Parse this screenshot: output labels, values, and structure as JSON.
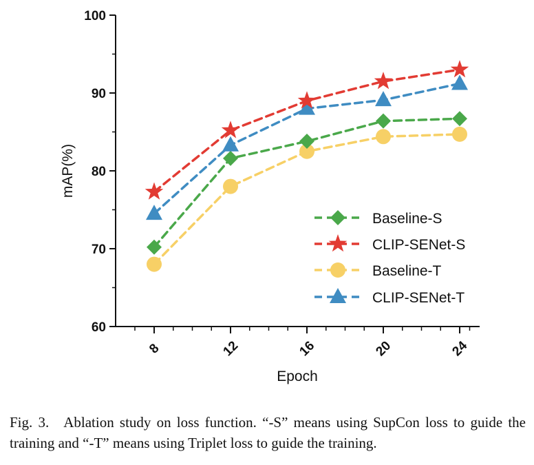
{
  "chart_data": {
    "type": "line",
    "xlabel": "Epoch",
    "ylabel": "mAP(%)",
    "categories": [
      "8",
      "12",
      "16",
      "20",
      "24"
    ],
    "ylim": [
      60,
      100
    ],
    "yticks": [
      "60",
      "70",
      "80",
      "90",
      "100"
    ],
    "legend_position": "bottom-right",
    "grid": false,
    "series": [
      {
        "name": "Baseline-S",
        "values": [
          70.2,
          81.6,
          83.8,
          86.4,
          86.7
        ],
        "color": "#4aa84a",
        "marker": "diamond"
      },
      {
        "name": "CLIP-SENet-S",
        "values": [
          77.3,
          85.2,
          89.0,
          91.5,
          93.0
        ],
        "color": "#e23b33",
        "marker": "star"
      },
      {
        "name": "Baseline-T",
        "values": [
          68.0,
          78.0,
          82.5,
          84.4,
          84.7
        ],
        "color": "#f7d066",
        "marker": "circle"
      },
      {
        "name": "CLIP-SENet-T",
        "values": [
          74.5,
          83.3,
          88.0,
          89.1,
          91.2
        ],
        "color": "#3f8cc2",
        "marker": "triangle"
      }
    ]
  },
  "caption": "Fig. 3. Ablation study on loss function. “-S” means using SupCon loss to guide the training and “-T” means using Triplet loss to guide the training."
}
